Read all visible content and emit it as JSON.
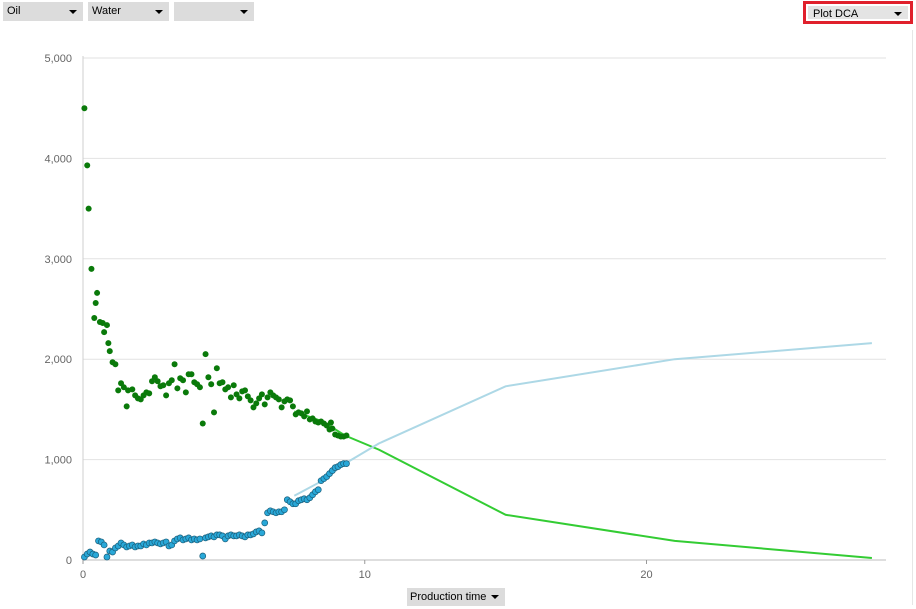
{
  "selectors": {
    "primary": "Oil",
    "secondary": "Water",
    "tertiary": ""
  },
  "plot_button": "Plot DCA",
  "x_axis_selector": "Production time",
  "colors": {
    "oil_points": "#0a7a0a",
    "oil_fit": "#33cc33",
    "water_points": "#29a8d8",
    "water_fit": "#add8e6",
    "grid": "#e2e2e2",
    "highlight": "#e0202c"
  },
  "chart_data": {
    "type": "scatter",
    "xlabel": "Production time",
    "ylabel": "",
    "xlim": [
      0,
      28.5
    ],
    "ylim": [
      0,
      5000
    ],
    "x_ticks": [
      0,
      10,
      20
    ],
    "x_tick_labels": [
      "0",
      "10",
      "20"
    ],
    "y_ticks": [
      0,
      1000,
      2000,
      3000,
      4000,
      5000
    ],
    "y_tick_labels": [
      "0",
      "1,000",
      "2,000",
      "3,000",
      "4,000",
      "5,000"
    ],
    "grid": true,
    "series": [
      {
        "kind": "points",
        "color": "#0a7a0a",
        "points": [
          [
            0.05,
            4500
          ],
          [
            0.15,
            3930
          ],
          [
            0.2,
            3500
          ],
          [
            0.3,
            2900
          ],
          [
            0.4,
            2410
          ],
          [
            0.45,
            2560
          ],
          [
            0.5,
            2660
          ],
          [
            0.6,
            2370
          ],
          [
            0.7,
            2360
          ],
          [
            0.75,
            2270
          ],
          [
            0.85,
            2340
          ],
          [
            0.9,
            2160
          ],
          [
            0.95,
            2080
          ],
          [
            1.05,
            1970
          ],
          [
            1.15,
            1950
          ],
          [
            1.25,
            1690
          ],
          [
            1.35,
            1760
          ],
          [
            1.45,
            1720
          ],
          [
            1.55,
            1530
          ],
          [
            1.6,
            1690
          ],
          [
            1.75,
            1700
          ],
          [
            1.85,
            1640
          ],
          [
            1.95,
            1610
          ],
          [
            2.05,
            1600
          ],
          [
            2.15,
            1640
          ],
          [
            2.25,
            1670
          ],
          [
            2.35,
            1660
          ],
          [
            2.45,
            1780
          ],
          [
            2.55,
            1820
          ],
          [
            2.65,
            1780
          ],
          [
            2.75,
            1730
          ],
          [
            2.85,
            1740
          ],
          [
            2.95,
            1640
          ],
          [
            3.05,
            1760
          ],
          [
            3.15,
            1790
          ],
          [
            3.25,
            1950
          ],
          [
            3.35,
            1710
          ],
          [
            3.45,
            1810
          ],
          [
            3.55,
            1790
          ],
          [
            3.65,
            1670
          ],
          [
            3.75,
            1850
          ],
          [
            3.85,
            1850
          ],
          [
            3.95,
            1770
          ],
          [
            4.05,
            1750
          ],
          [
            4.15,
            1720
          ],
          [
            4.25,
            1360
          ],
          [
            4.35,
            2050
          ],
          [
            4.45,
            1820
          ],
          [
            4.55,
            1750
          ],
          [
            4.65,
            1470
          ],
          [
            4.75,
            1910
          ],
          [
            4.85,
            1760
          ],
          [
            4.95,
            1770
          ],
          [
            5.05,
            1700
          ],
          [
            5.15,
            1720
          ],
          [
            5.25,
            1620
          ],
          [
            5.35,
            1740
          ],
          [
            5.45,
            1650
          ],
          [
            5.55,
            1610
          ],
          [
            5.65,
            1680
          ],
          [
            5.75,
            1690
          ],
          [
            5.85,
            1630
          ],
          [
            5.95,
            1590
          ],
          [
            6.05,
            1520
          ],
          [
            6.15,
            1560
          ],
          [
            6.25,
            1610
          ],
          [
            6.35,
            1650
          ],
          [
            6.45,
            1550
          ],
          [
            6.55,
            1620
          ],
          [
            6.65,
            1670
          ],
          [
            6.75,
            1640
          ],
          [
            6.85,
            1620
          ],
          [
            6.95,
            1600
          ],
          [
            7.05,
            1520
          ],
          [
            7.15,
            1580
          ],
          [
            7.25,
            1600
          ],
          [
            7.35,
            1590
          ],
          [
            7.45,
            1530
          ],
          [
            7.55,
            1450
          ],
          [
            7.65,
            1470
          ],
          [
            7.75,
            1460
          ],
          [
            7.85,
            1430
          ],
          [
            7.95,
            1480
          ],
          [
            8.05,
            1400
          ],
          [
            8.15,
            1410
          ],
          [
            8.25,
            1380
          ],
          [
            8.35,
            1370
          ],
          [
            8.45,
            1380
          ],
          [
            8.55,
            1360
          ],
          [
            8.65,
            1340
          ],
          [
            8.75,
            1300
          ],
          [
            8.8,
            1370
          ],
          [
            8.85,
            1310
          ],
          [
            8.95,
            1250
          ],
          [
            9.05,
            1240
          ],
          [
            9.15,
            1230
          ],
          [
            9.25,
            1230
          ],
          [
            9.35,
            1240
          ]
        ]
      },
      {
        "kind": "points",
        "color": "#29a8d8",
        "points": [
          [
            0.05,
            30
          ],
          [
            0.15,
            60
          ],
          [
            0.25,
            80
          ],
          [
            0.35,
            60
          ],
          [
            0.45,
            50
          ],
          [
            0.55,
            190
          ],
          [
            0.65,
            180
          ],
          [
            0.75,
            150
          ],
          [
            0.85,
            30
          ],
          [
            0.95,
            90
          ],
          [
            1.05,
            80
          ],
          [
            1.15,
            120
          ],
          [
            1.25,
            140
          ],
          [
            1.35,
            170
          ],
          [
            1.45,
            150
          ],
          [
            1.55,
            130
          ],
          [
            1.65,
            140
          ],
          [
            1.75,
            150
          ],
          [
            1.85,
            130
          ],
          [
            1.95,
            140
          ],
          [
            2.05,
            140
          ],
          [
            2.15,
            160
          ],
          [
            2.25,
            150
          ],
          [
            2.35,
            170
          ],
          [
            2.45,
            170
          ],
          [
            2.55,
            180
          ],
          [
            2.65,
            170
          ],
          [
            2.75,
            160
          ],
          [
            2.85,
            170
          ],
          [
            2.95,
            180
          ],
          [
            3.05,
            140
          ],
          [
            3.15,
            150
          ],
          [
            3.25,
            190
          ],
          [
            3.35,
            210
          ],
          [
            3.45,
            220
          ],
          [
            3.55,
            200
          ],
          [
            3.65,
            210
          ],
          [
            3.75,
            220
          ],
          [
            3.85,
            200
          ],
          [
            3.95,
            210
          ],
          [
            4.05,
            200
          ],
          [
            4.15,
            210
          ],
          [
            4.25,
            40
          ],
          [
            4.35,
            220
          ],
          [
            4.45,
            230
          ],
          [
            4.55,
            240
          ],
          [
            4.65,
            230
          ],
          [
            4.75,
            250
          ],
          [
            4.85,
            250
          ],
          [
            4.95,
            240
          ],
          [
            5.05,
            210
          ],
          [
            5.15,
            240
          ],
          [
            5.25,
            250
          ],
          [
            5.35,
            240
          ],
          [
            5.45,
            240
          ],
          [
            5.55,
            250
          ],
          [
            5.65,
            240
          ],
          [
            5.75,
            230
          ],
          [
            5.85,
            250
          ],
          [
            5.95,
            250
          ],
          [
            6.05,
            260
          ],
          [
            6.15,
            280
          ],
          [
            6.25,
            290
          ],
          [
            6.35,
            270
          ],
          [
            6.45,
            370
          ],
          [
            6.55,
            470
          ],
          [
            6.65,
            490
          ],
          [
            6.75,
            480
          ],
          [
            6.85,
            470
          ],
          [
            6.95,
            480
          ],
          [
            7.05,
            480
          ],
          [
            7.15,
            500
          ],
          [
            7.25,
            600
          ],
          [
            7.35,
            580
          ],
          [
            7.45,
            560
          ],
          [
            7.55,
            560
          ],
          [
            7.65,
            590
          ],
          [
            7.75,
            600
          ],
          [
            7.85,
            610
          ],
          [
            7.95,
            600
          ],
          [
            8.05,
            620
          ],
          [
            8.15,
            650
          ],
          [
            8.25,
            680
          ],
          [
            8.35,
            700
          ],
          [
            8.45,
            790
          ],
          [
            8.55,
            810
          ],
          [
            8.65,
            830
          ],
          [
            8.75,
            860
          ],
          [
            8.85,
            890
          ],
          [
            8.95,
            920
          ],
          [
            9.05,
            930
          ],
          [
            9.15,
            950
          ],
          [
            9.25,
            960
          ],
          [
            9.35,
            960
          ]
        ]
      },
      {
        "kind": "line",
        "color": "#33cc33",
        "points": [
          [
            7.5,
            1480
          ],
          [
            8.5,
            1380
          ],
          [
            9.3,
            1240
          ],
          [
            10.5,
            1100
          ],
          [
            15,
            450
          ],
          [
            21,
            190
          ],
          [
            28,
            20
          ]
        ]
      },
      {
        "kind": "line",
        "color": "#add8e6",
        "points": [
          [
            7.5,
            640
          ],
          [
            8.5,
            790
          ],
          [
            9.3,
            960
          ],
          [
            10.5,
            1160
          ],
          [
            15,
            1730
          ],
          [
            21,
            2000
          ],
          [
            28,
            2160
          ]
        ]
      }
    ]
  }
}
